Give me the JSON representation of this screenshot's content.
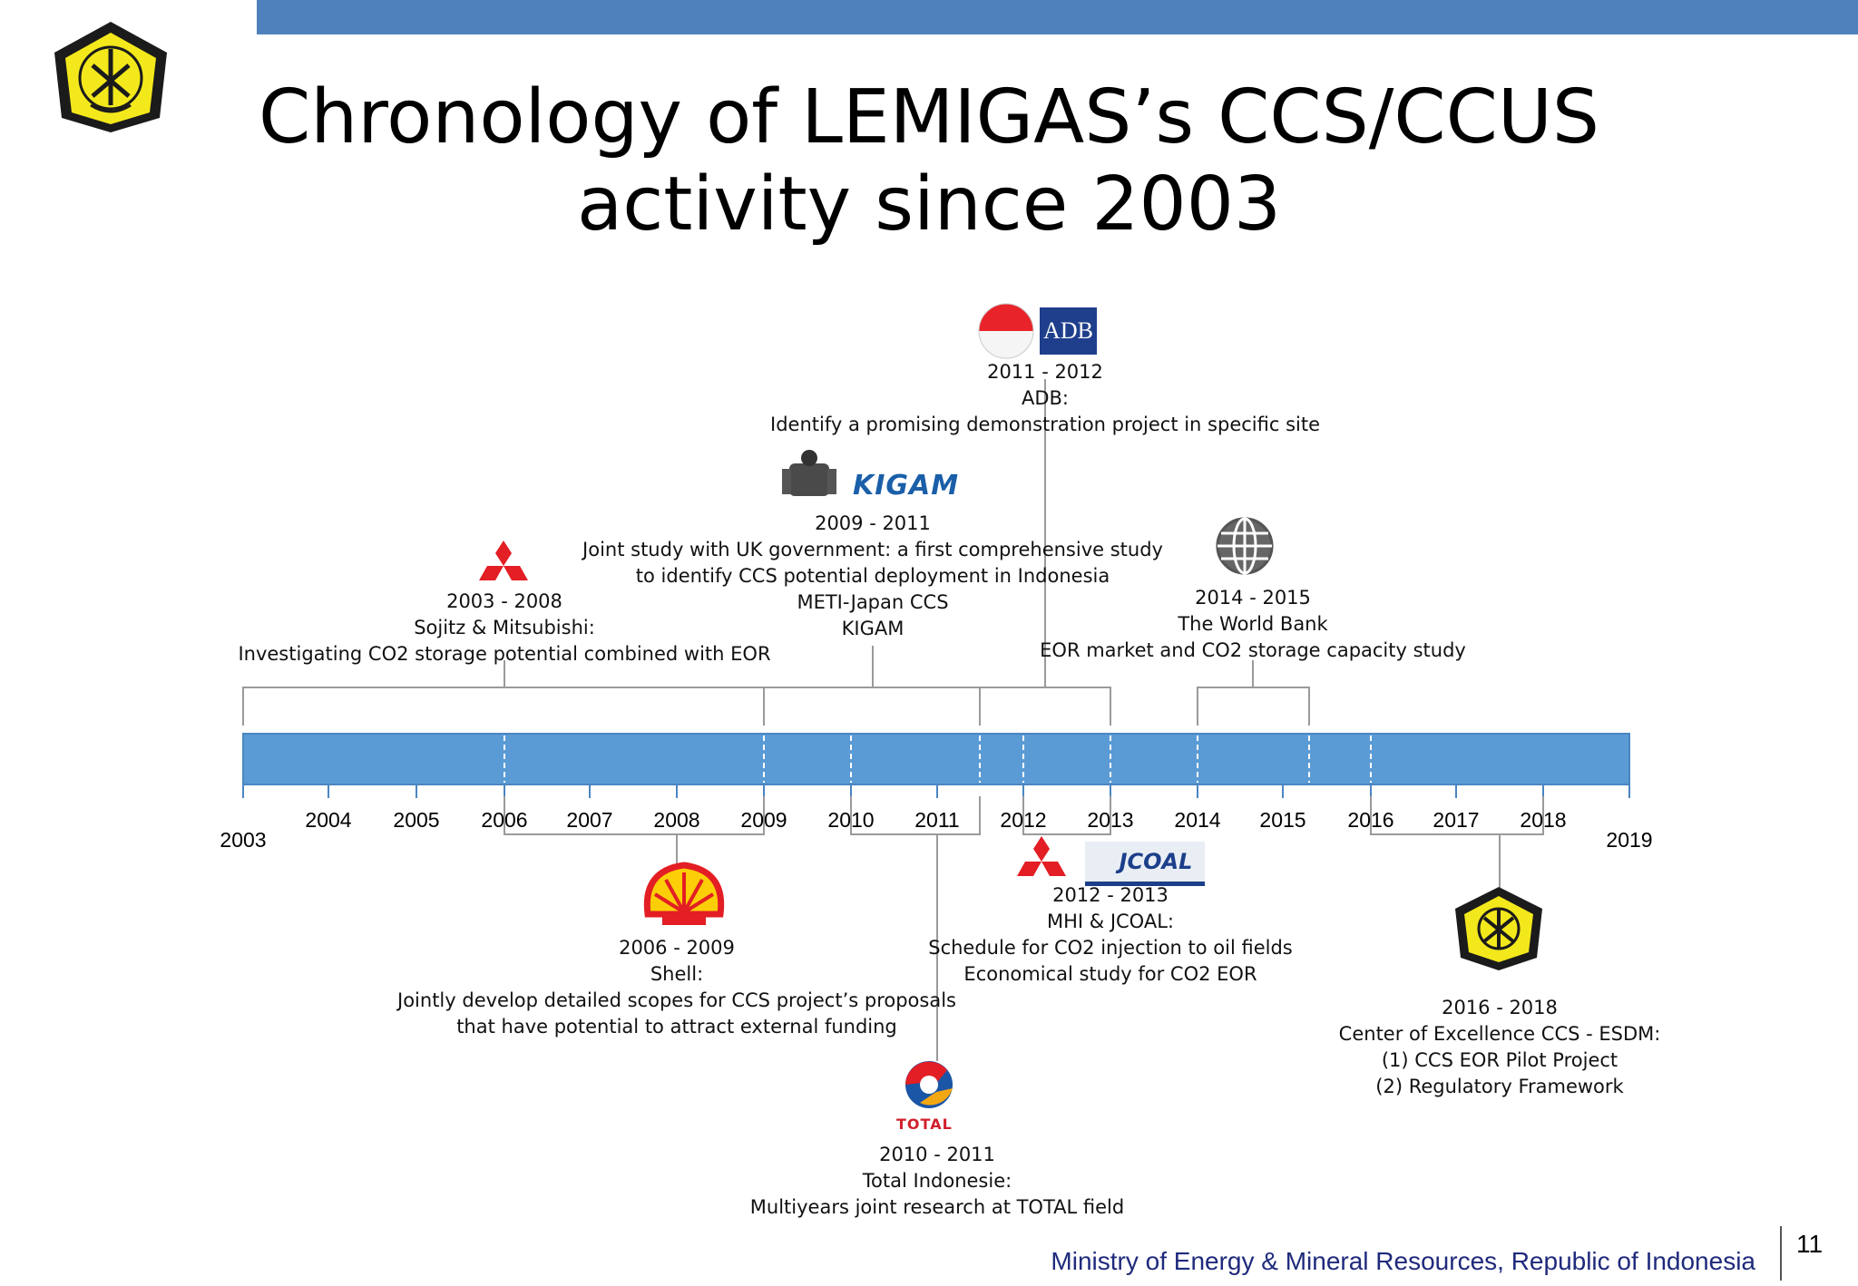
{
  "title": {
    "line1": "Chronology of LEMIGAS’s CCS/CCUS",
    "line2": "activity since 2003"
  },
  "logo_icon": "esdm-logo-icon",
  "colors": {
    "bar": "#4f81bd",
    "accent_red": "#e31e24",
    "footer_text": "#1f2a7c"
  },
  "timeline": {
    "years": [
      "2003",
      "2004",
      "2005",
      "2006",
      "2007",
      "2008",
      "2009",
      "2010",
      "2011",
      "2012",
      "2013",
      "2014",
      "2015",
      "2016",
      "2017",
      "2018",
      "2019"
    ]
  },
  "events": {
    "adb": {
      "years": "2011 - 2012",
      "org": "ADB:",
      "desc": "Identify a promising demonstration project in specific site",
      "logo_text": "ADB"
    },
    "kigam": {
      "years": "2009 - 2011",
      "desc1": "Joint study with UK government: a first comprehensive study",
      "desc2": "to identify CCS potential deployment in Indonesia",
      "org1": "METI-Japan CCS",
      "org2": "KIGAM",
      "logo_text": "KIGAM"
    },
    "sojitz": {
      "years": "2003 - 2008",
      "org": "Sojitz & Mitsubishi:",
      "desc": "Investigating CO2 storage potential combined with EOR"
    },
    "worldbank": {
      "years": "2014 - 2015",
      "org": "The World Bank",
      "desc": "EOR market and CO2 storage capacity study"
    },
    "shell": {
      "years": "2006 - 2009",
      "org": "Shell:",
      "desc1": "Jointly develop detailed scopes for CCS project’s proposals",
      "desc2": "that have potential to attract external funding"
    },
    "mhi": {
      "years": "2012 - 2013",
      "org": "MHI & JCOAL:",
      "desc1": "Schedule for CO2 injection to oil fields",
      "desc2": "Economical study for CO2 EOR",
      "logo_text": "JCOAL"
    },
    "total": {
      "years": "2010 - 2011",
      "org": "Total Indonesie:",
      "desc": "Multiyears joint research at TOTAL field",
      "logo_text": "TOTAL"
    },
    "coe": {
      "years": "2016 - 2018",
      "org": "Center of Excellence CCS - ESDM:",
      "item1": "(1) CCS EOR Pilot Project",
      "item2": "(2) Regulatory Framework"
    }
  },
  "footer": {
    "text": "Ministry of Energy & Mineral Resources, Republic of Indonesia",
    "page": "11"
  }
}
